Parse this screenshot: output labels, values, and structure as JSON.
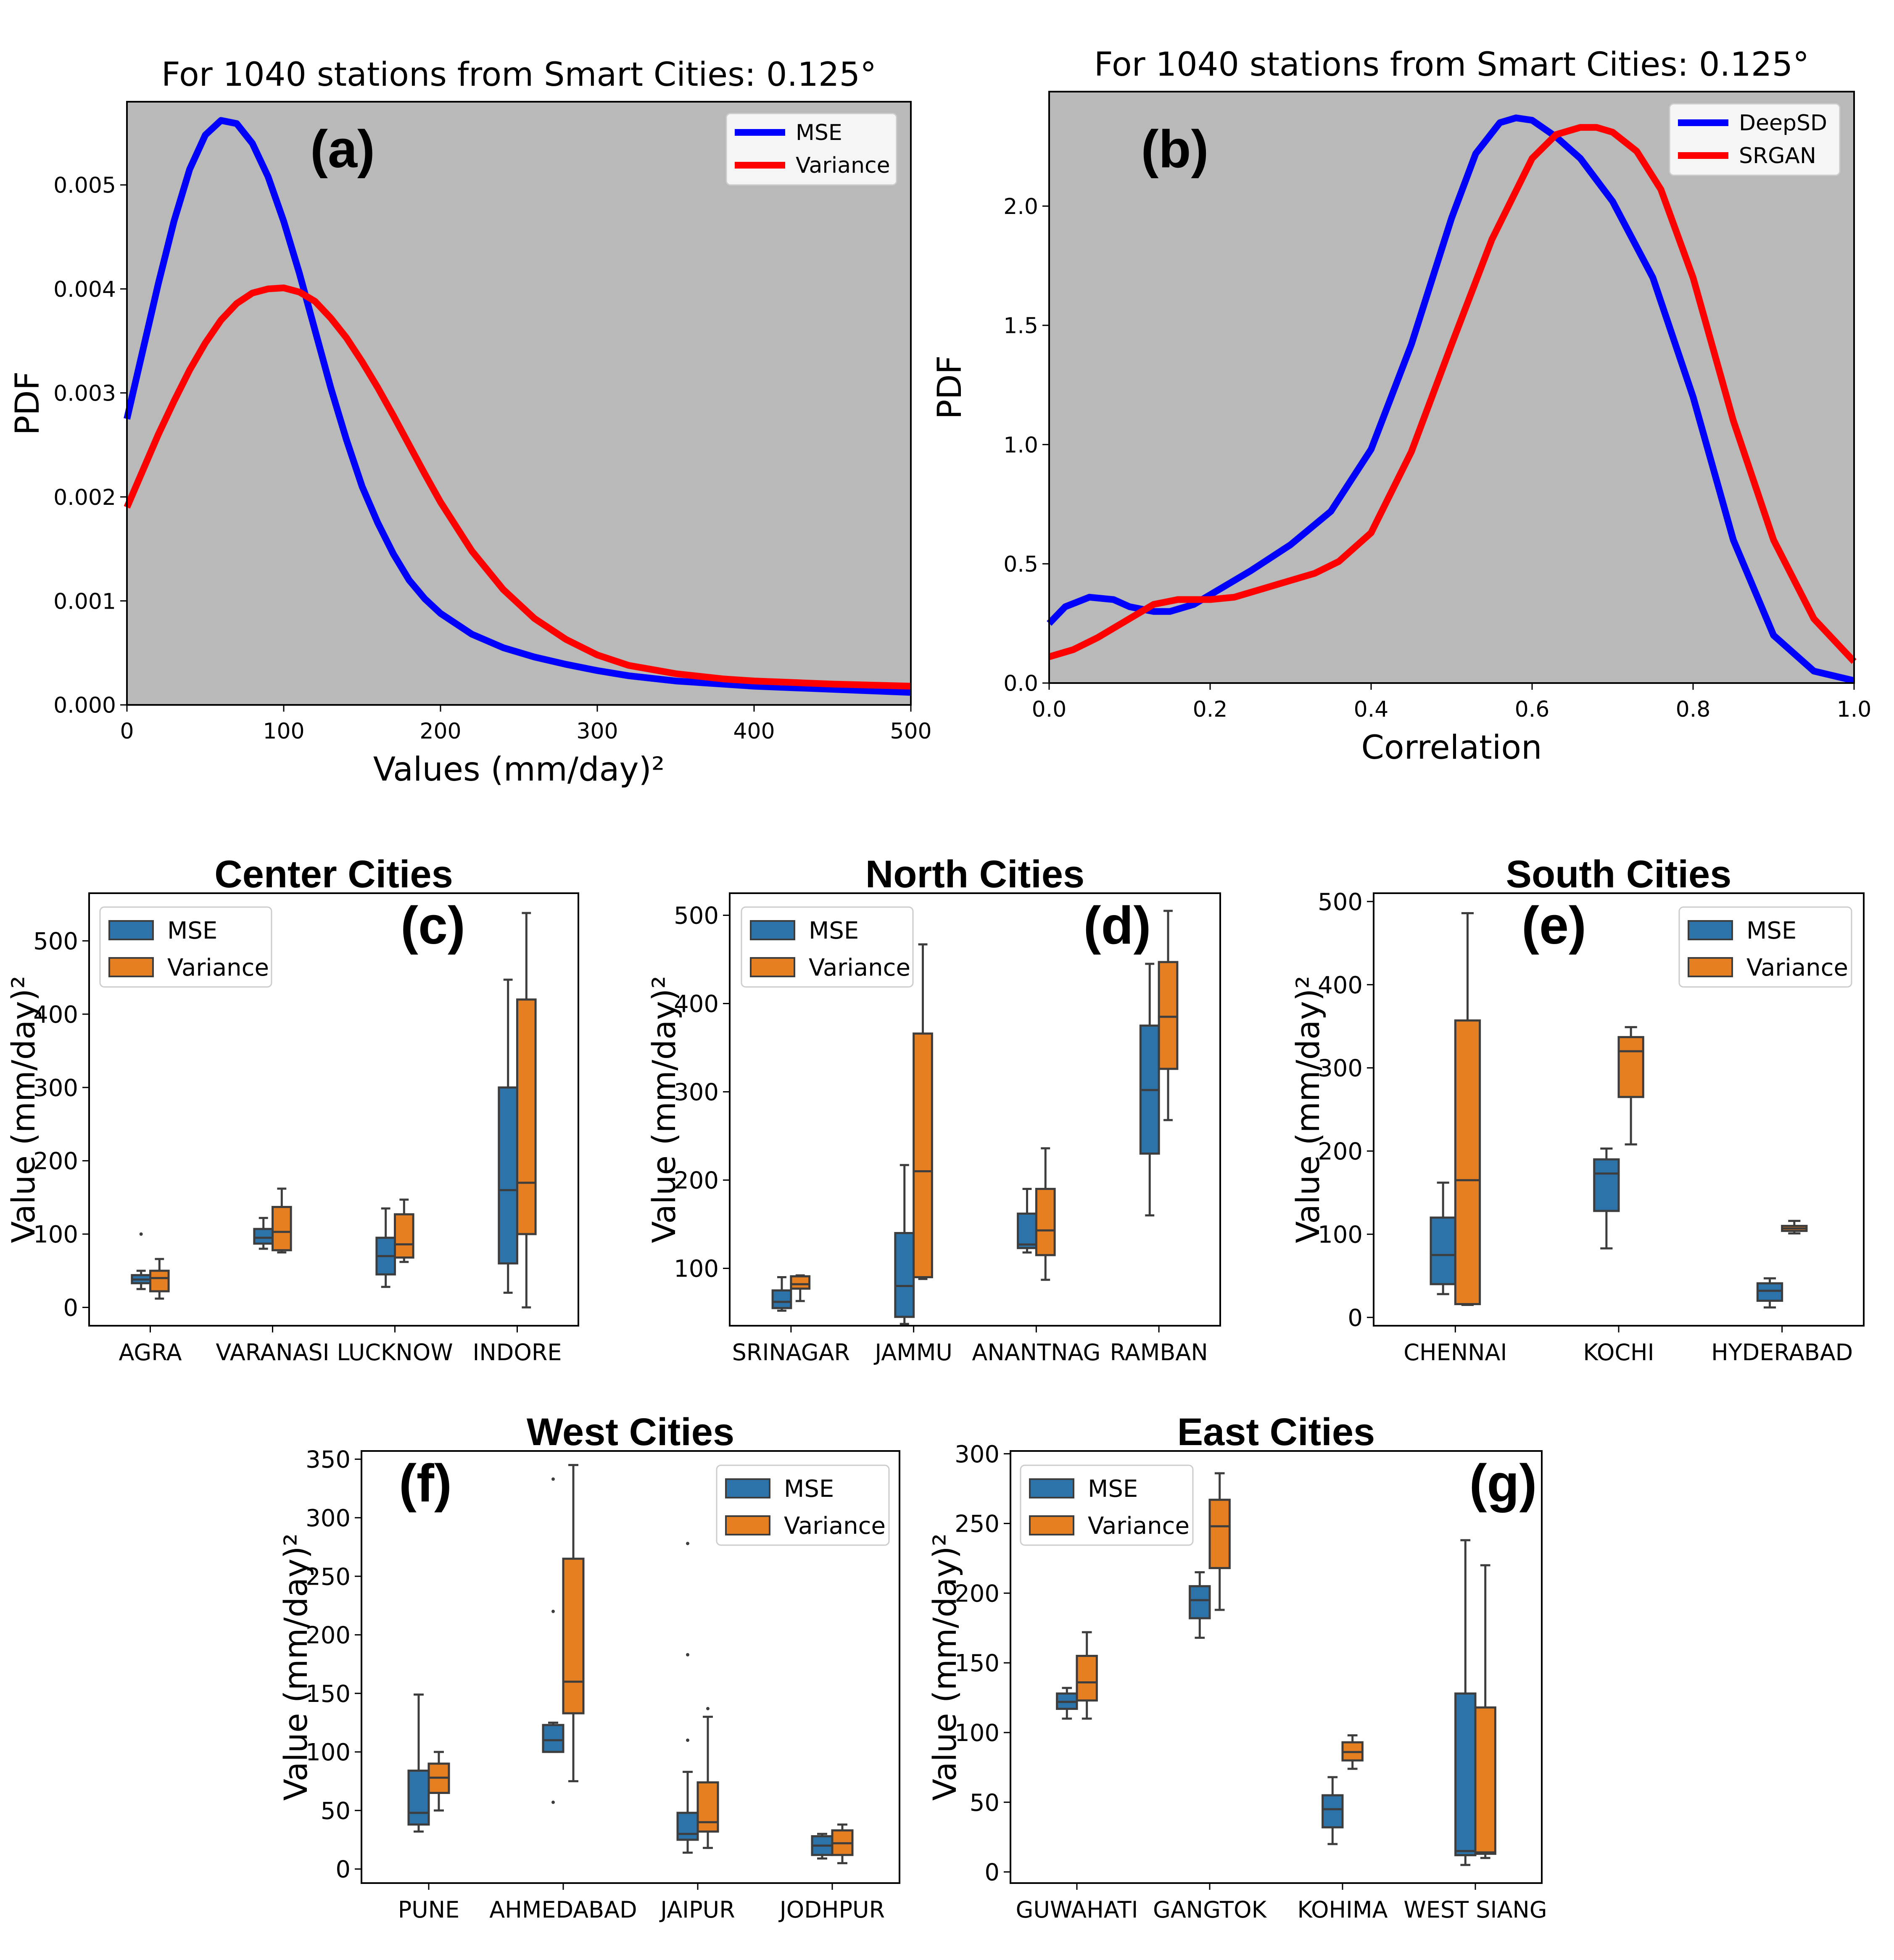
{
  "colors": {
    "mse_line": "#0000ff",
    "variance_line": "#ff0000",
    "plot_bg": "#b9b9b9",
    "box_mse": "#2b73a8",
    "box_variance": "#e67e22",
    "box_edge": "#3d3d3d"
  },
  "chart_data": [
    {
      "type": "line",
      "panel_label": "(a)",
      "title": "For 1040 stations from Smart Cities: 0.125°",
      "xlabel": "Values (mm/day)²",
      "ylabel": "PDF",
      "xlim": [
        0,
        500
      ],
      "ylim": [
        0,
        0.0058
      ],
      "xticks": [
        0,
        100,
        200,
        300,
        400,
        500
      ],
      "xtick_labels": [
        "0",
        "100",
        "200",
        "300",
        "400",
        "500"
      ],
      "yticks": [
        0,
        0.001,
        0.002,
        0.003,
        0.004,
        0.005
      ],
      "ytick_labels": [
        "0.000",
        "0.001",
        "0.002",
        "0.003",
        "0.004",
        "0.005"
      ],
      "legend": "top-right",
      "series": [
        {
          "name": "MSE",
          "color": "#0000ff",
          "x": [
            0,
            10,
            20,
            30,
            40,
            50,
            60,
            70,
            80,
            90,
            100,
            110,
            120,
            130,
            140,
            150,
            160,
            170,
            180,
            190,
            200,
            220,
            240,
            260,
            280,
            300,
            320,
            350,
            380,
            400,
            450,
            500
          ],
          "y": [
            0.00275,
            0.0034,
            0.00405,
            0.00465,
            0.00515,
            0.00548,
            0.00562,
            0.00559,
            0.0054,
            0.00508,
            0.00465,
            0.00415,
            0.0036,
            0.00305,
            0.00255,
            0.0021,
            0.00175,
            0.00145,
            0.0012,
            0.00102,
            0.00088,
            0.00068,
            0.00055,
            0.00046,
            0.00039,
            0.00033,
            0.00028,
            0.00023,
            0.0002,
            0.00018,
            0.00015,
            0.00012
          ]
        },
        {
          "name": "Variance",
          "color": "#ff0000",
          "x": [
            0,
            10,
            20,
            30,
            40,
            50,
            60,
            70,
            80,
            90,
            100,
            110,
            120,
            130,
            140,
            150,
            160,
            170,
            180,
            190,
            200,
            220,
            240,
            260,
            280,
            300,
            320,
            350,
            380,
            400,
            450,
            500
          ],
          "y": [
            0.0019,
            0.00225,
            0.0026,
            0.00292,
            0.00322,
            0.00348,
            0.0037,
            0.00386,
            0.00396,
            0.004,
            0.00401,
            0.00397,
            0.00388,
            0.00372,
            0.00353,
            0.0033,
            0.00305,
            0.00278,
            0.0025,
            0.00222,
            0.00195,
            0.00148,
            0.00111,
            0.00083,
            0.00063,
            0.00048,
            0.00038,
            0.0003,
            0.00025,
            0.00023,
            0.0002,
            0.00018
          ]
        }
      ]
    },
    {
      "type": "line",
      "panel_label": "(b)",
      "title": "For 1040 stations from Smart Cities: 0.125°",
      "xlabel": "Correlation",
      "ylabel": "PDF",
      "xlim": [
        0,
        1
      ],
      "ylim": [
        0,
        2.48
      ],
      "xticks": [
        0,
        0.2,
        0.4,
        0.6,
        0.8,
        1.0
      ],
      "xtick_labels": [
        "0.0",
        "0.2",
        "0.4",
        "0.6",
        "0.8",
        "1.0"
      ],
      "yticks": [
        0,
        0.5,
        1.0,
        1.5,
        2.0
      ],
      "ytick_labels": [
        "0.0",
        "0.5",
        "1.0",
        "1.5",
        "2.0"
      ],
      "legend": "top-right",
      "series": [
        {
          "name": "DeepSD",
          "color": "#0000ff",
          "x": [
            0,
            0.02,
            0.05,
            0.08,
            0.1,
            0.13,
            0.15,
            0.18,
            0.2,
            0.25,
            0.3,
            0.35,
            0.4,
            0.45,
            0.5,
            0.53,
            0.56,
            0.58,
            0.6,
            0.63,
            0.66,
            0.7,
            0.75,
            0.8,
            0.85,
            0.9,
            0.95,
            1.0
          ],
          "y": [
            0.25,
            0.32,
            0.36,
            0.35,
            0.32,
            0.3,
            0.3,
            0.33,
            0.37,
            0.47,
            0.58,
            0.72,
            0.98,
            1.42,
            1.95,
            2.22,
            2.35,
            2.37,
            2.36,
            2.29,
            2.2,
            2.02,
            1.7,
            1.2,
            0.6,
            0.2,
            0.05,
            0.01
          ]
        },
        {
          "name": "SRGAN",
          "color": "#ff0000",
          "x": [
            0,
            0.03,
            0.06,
            0.1,
            0.13,
            0.16,
            0.2,
            0.23,
            0.27,
            0.3,
            0.33,
            0.36,
            0.4,
            0.45,
            0.5,
            0.55,
            0.6,
            0.63,
            0.66,
            0.68,
            0.7,
            0.73,
            0.76,
            0.8,
            0.85,
            0.9,
            0.95,
            1.0
          ],
          "y": [
            0.11,
            0.14,
            0.19,
            0.27,
            0.33,
            0.35,
            0.35,
            0.36,
            0.4,
            0.43,
            0.46,
            0.51,
            0.63,
            0.97,
            1.42,
            1.86,
            2.2,
            2.3,
            2.33,
            2.33,
            2.31,
            2.23,
            2.07,
            1.7,
            1.1,
            0.6,
            0.27,
            0.09
          ]
        }
      ]
    },
    {
      "type": "box",
      "panel_label": "(c)",
      "title": "Center Cities",
      "ylabel": "Value (mm/day)²",
      "ylim": [
        -25,
        565
      ],
      "yticks": [
        0,
        100,
        200,
        300,
        400,
        500
      ],
      "ytick_labels": [
        "0",
        "100",
        "200",
        "300",
        "400",
        "500"
      ],
      "categories": [
        "AGRA",
        "VARANASI",
        "LUCKNOW",
        "INDORE"
      ],
      "legend": "top-left",
      "series": [
        {
          "name": "MSE",
          "boxes": [
            {
              "whislo": 25,
              "q1": 33,
              "med": 38,
              "q3": 44,
              "whishi": 50,
              "fliers": [
                100
              ]
            },
            {
              "whislo": 80,
              "q1": 87,
              "med": 95,
              "q3": 107,
              "whishi": 122,
              "fliers": []
            },
            {
              "whislo": 28,
              "q1": 45,
              "med": 70,
              "q3": 95,
              "whishi": 135,
              "fliers": []
            },
            {
              "whislo": 20,
              "q1": 60,
              "med": 160,
              "q3": 300,
              "whishi": 447,
              "fliers": []
            }
          ]
        },
        {
          "name": "Variance",
          "boxes": [
            {
              "whislo": 12,
              "q1": 22,
              "med": 40,
              "q3": 50,
              "whishi": 66,
              "fliers": []
            },
            {
              "whislo": 75,
              "q1": 78,
              "med": 103,
              "q3": 137,
              "whishi": 162,
              "fliers": []
            },
            {
              "whislo": 62,
              "q1": 68,
              "med": 86,
              "q3": 127,
              "whishi": 147,
              "fliers": []
            },
            {
              "whislo": 0,
              "q1": 100,
              "med": 170,
              "q3": 420,
              "whishi": 538,
              "fliers": []
            }
          ]
        }
      ]
    },
    {
      "type": "box",
      "panel_label": "(d)",
      "title": "North Cities",
      "ylabel": "Value (mm/day)²",
      "ylim": [
        35,
        525
      ],
      "yticks": [
        100,
        200,
        300,
        400,
        500
      ],
      "ytick_labels": [
        "100",
        "200",
        "300",
        "400",
        "500"
      ],
      "categories": [
        "SRINAGAR",
        "JAMMU",
        "ANANTNAG",
        "RAMBAN"
      ],
      "legend": "top-left",
      "series": [
        {
          "name": "MSE",
          "boxes": [
            {
              "whislo": 52,
              "q1": 55,
              "med": 62,
              "q3": 75,
              "whishi": 90,
              "fliers": []
            },
            {
              "whislo": 37,
              "q1": 45,
              "med": 80,
              "q3": 140,
              "whishi": 217,
              "fliers": []
            },
            {
              "whislo": 118,
              "q1": 123,
              "med": 127,
              "q3": 162,
              "whishi": 190,
              "fliers": []
            },
            {
              "whislo": 160,
              "q1": 230,
              "med": 302,
              "q3": 375,
              "whishi": 445,
              "fliers": []
            }
          ]
        },
        {
          "name": "Variance",
          "boxes": [
            {
              "whislo": 63,
              "q1": 77,
              "med": 82,
              "q3": 91,
              "whishi": 92,
              "fliers": []
            },
            {
              "whislo": 88,
              "q1": 90,
              "med": 210,
              "q3": 366,
              "whishi": 467,
              "fliers": []
            },
            {
              "whislo": 87,
              "q1": 115,
              "med": 143,
              "q3": 190,
              "whishi": 236,
              "fliers": []
            },
            {
              "whislo": 268,
              "q1": 326,
              "med": 385,
              "q3": 447,
              "whishi": 505,
              "fliers": []
            }
          ]
        }
      ]
    },
    {
      "type": "box",
      "panel_label": "(e)",
      "title": "South Cities",
      "ylabel": "Value (mm/day)²",
      "ylim": [
        -10,
        510
      ],
      "yticks": [
        0,
        100,
        200,
        300,
        400,
        500
      ],
      "ytick_labels": [
        "0",
        "100",
        "200",
        "300",
        "400",
        "500"
      ],
      "categories": [
        "CHENNAI",
        "KOCHI",
        "HYDERABAD"
      ],
      "legend": "top-right",
      "series": [
        {
          "name": "MSE",
          "boxes": [
            {
              "whislo": 28,
              "q1": 40,
              "med": 75,
              "q3": 120,
              "whishi": 162,
              "fliers": []
            },
            {
              "whislo": 83,
              "q1": 128,
              "med": 173,
              "q3": 190,
              "whishi": 203,
              "fliers": []
            },
            {
              "whislo": 12,
              "q1": 20,
              "med": 32,
              "q3": 41,
              "whishi": 47,
              "fliers": []
            }
          ]
        },
        {
          "name": "Variance",
          "boxes": [
            {
              "whislo": 15,
              "q1": 16,
              "med": 165,
              "q3": 357,
              "whishi": 486,
              "fliers": []
            },
            {
              "whislo": 208,
              "q1": 265,
              "med": 320,
              "q3": 337,
              "whishi": 349,
              "fliers": []
            },
            {
              "whislo": 101,
              "q1": 104,
              "med": 107,
              "q3": 110,
              "whishi": 116,
              "fliers": []
            }
          ]
        }
      ]
    },
    {
      "type": "box",
      "panel_label": "(f)",
      "title": "West Cities",
      "ylabel": "Value (mm/day)²",
      "ylim": [
        -12,
        357
      ],
      "yticks": [
        0,
        50,
        100,
        150,
        200,
        250,
        300,
        350
      ],
      "ytick_labels": [
        "0",
        "50",
        "100",
        "150",
        "200",
        "250",
        "300",
        "350"
      ],
      "categories": [
        "PUNE",
        "AHMEDABAD",
        "JAIPUR",
        "JODHPUR"
      ],
      "legend": "top-right",
      "series": [
        {
          "name": "MSE",
          "boxes": [
            {
              "whislo": 32,
              "q1": 38,
              "med": 48,
              "q3": 84,
              "whishi": 149,
              "fliers": []
            },
            {
              "whislo": 100,
              "q1": 100,
              "med": 110,
              "q3": 123,
              "whishi": 125,
              "fliers": [
                57,
                220,
                333
              ]
            },
            {
              "whislo": 14,
              "q1": 25,
              "med": 30,
              "q3": 48,
              "whishi": 83,
              "fliers": [
                110,
                183,
                278
              ]
            },
            {
              "whislo": 9,
              "q1": 12,
              "med": 20,
              "q3": 28,
              "whishi": 30,
              "fliers": []
            }
          ]
        },
        {
          "name": "Variance",
          "boxes": [
            {
              "whislo": 50,
              "q1": 65,
              "med": 78,
              "q3": 90,
              "whishi": 100,
              "fliers": []
            },
            {
              "whislo": 75,
              "q1": 133,
              "med": 160,
              "q3": 265,
              "whishi": 345,
              "fliers": []
            },
            {
              "whislo": 18,
              "q1": 32,
              "med": 40,
              "q3": 74,
              "whishi": 130,
              "fliers": [
                137
              ]
            },
            {
              "whislo": 5,
              "q1": 12,
              "med": 22,
              "q3": 33,
              "whishi": 38,
              "fliers": []
            }
          ]
        }
      ]
    },
    {
      "type": "box",
      "panel_label": "(g)",
      "title": "East Cities",
      "ylabel": "Value (mm/day)²",
      "ylim": [
        -8,
        302
      ],
      "yticks": [
        0,
        50,
        100,
        150,
        200,
        250,
        300
      ],
      "ytick_labels": [
        "0",
        "50",
        "100",
        "150",
        "200",
        "250",
        "300"
      ],
      "categories": [
        "GUWAHATI",
        "GANGTOK",
        "KOHIMA",
        "WEST SIANG"
      ],
      "legend": "top-left",
      "series": [
        {
          "name": "MSE",
          "boxes": [
            {
              "whislo": 110,
              "q1": 117,
              "med": 122,
              "q3": 128,
              "whishi": 132,
              "fliers": []
            },
            {
              "whislo": 168,
              "q1": 182,
              "med": 195,
              "q3": 205,
              "whishi": 215,
              "fliers": []
            },
            {
              "whislo": 20,
              "q1": 32,
              "med": 45,
              "q3": 55,
              "whishi": 68,
              "fliers": []
            },
            {
              "whislo": 5,
              "q1": 12,
              "med": 15,
              "q3": 128,
              "whishi": 238,
              "fliers": []
            }
          ]
        },
        {
          "name": "Variance",
          "boxes": [
            {
              "whislo": 110,
              "q1": 123,
              "med": 136,
              "q3": 155,
              "whishi": 172,
              "fliers": []
            },
            {
              "whislo": 188,
              "q1": 218,
              "med": 248,
              "q3": 267,
              "whishi": 286,
              "fliers": []
            },
            {
              "whislo": 74,
              "q1": 80,
              "med": 86,
              "q3": 93,
              "whishi": 98,
              "fliers": []
            },
            {
              "whislo": 10,
              "q1": 13,
              "med": 14,
              "q3": 118,
              "whishi": 220,
              "fliers": []
            }
          ]
        }
      ]
    }
  ]
}
